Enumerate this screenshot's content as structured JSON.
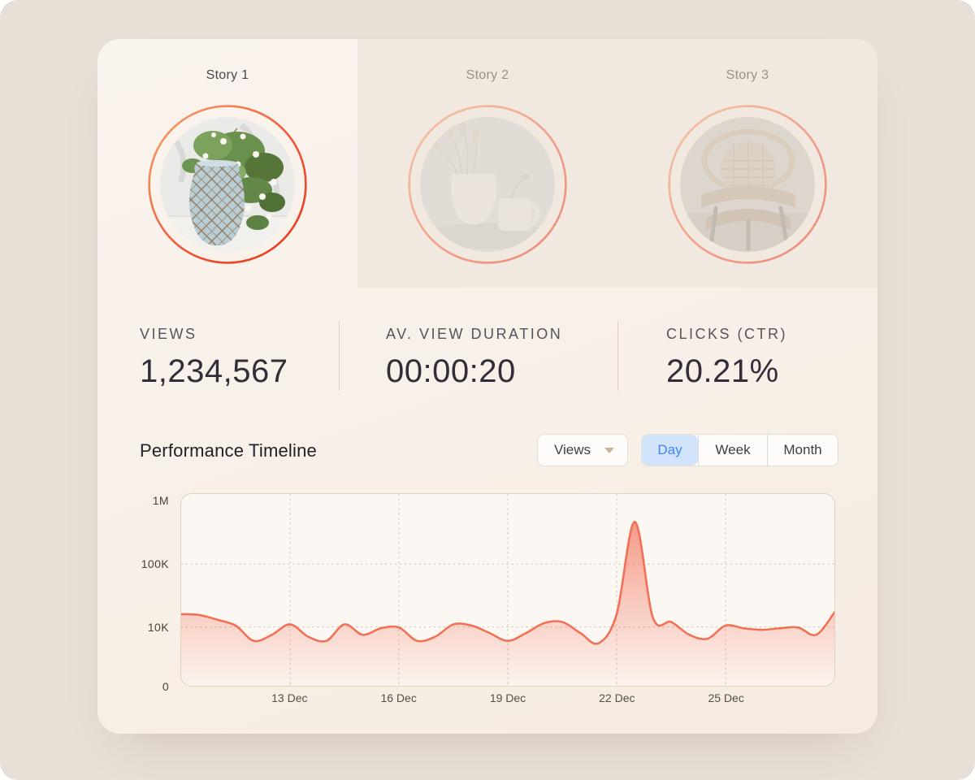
{
  "window": {
    "background": "#e8e0d7",
    "card_background": "#f8f0e8"
  },
  "stories": [
    {
      "label": "Story 1",
      "active": true
    },
    {
      "label": "Story 2",
      "active": false
    },
    {
      "label": "Story 3",
      "active": false
    }
  ],
  "stats": [
    {
      "label": "VIEWS",
      "value": "1,234,567"
    },
    {
      "label": "AV. VIEW DURATION",
      "value": "00:00:20"
    },
    {
      "label": "CLICKS (CTR)",
      "value": "20.21%"
    }
  ],
  "timeline": {
    "title": "Performance Timeline",
    "metric_dropdown": {
      "value": "Views"
    },
    "range_options": [
      {
        "label": "Day",
        "active": true
      },
      {
        "label": "Week",
        "active": false
      },
      {
        "label": "Month",
        "active": false
      }
    ]
  },
  "colors": {
    "accent_blue": "#4285f4",
    "accent_blue_bg": "#d2e3fc",
    "story_ring_start": "#f7a66f",
    "story_ring_end": "#e6331a",
    "chart_line": "#f17056",
    "chart_fill": "#f2684e"
  },
  "chart_data": {
    "type": "area",
    "title": "Performance Timeline",
    "series_name": "Views",
    "x_start": "10 Dec",
    "x_end": "28 Dec",
    "points_per_day": 2,
    "values": [
      16000,
      15500,
      13000,
      10500,
      6000,
      7500,
      11000,
      7000,
      6000,
      11000,
      7500,
      9500,
      9800,
      6000,
      7000,
      11000,
      10500,
      8000,
      6000,
      8000,
      11500,
      12000,
      8000,
      5500,
      16000,
      470000,
      14000,
      12000,
      7500,
      6500,
      10500,
      9500,
      9000,
      9500,
      9800,
      7500,
      17000
    ],
    "y_scale": "log",
    "ylim_log": [
      1000,
      1000000
    ],
    "y_ticks": [
      {
        "label": "1M",
        "value": 1000000
      },
      {
        "label": "100K",
        "value": 100000
      },
      {
        "label": "10K",
        "value": 10000
      },
      {
        "label": "0",
        "value": 0
      }
    ],
    "x_ticks": [
      {
        "label": "13 Dec",
        "at": 6
      },
      {
        "label": "16 Dec",
        "at": 12
      },
      {
        "label": "19 Dec",
        "at": 18
      },
      {
        "label": "22 Dec",
        "at": 24
      },
      {
        "label": "25 Dec",
        "at": 30
      }
    ],
    "grid": "dotted",
    "legend": "none",
    "line_color": "#f17056",
    "fill_color": "#f2684e"
  }
}
